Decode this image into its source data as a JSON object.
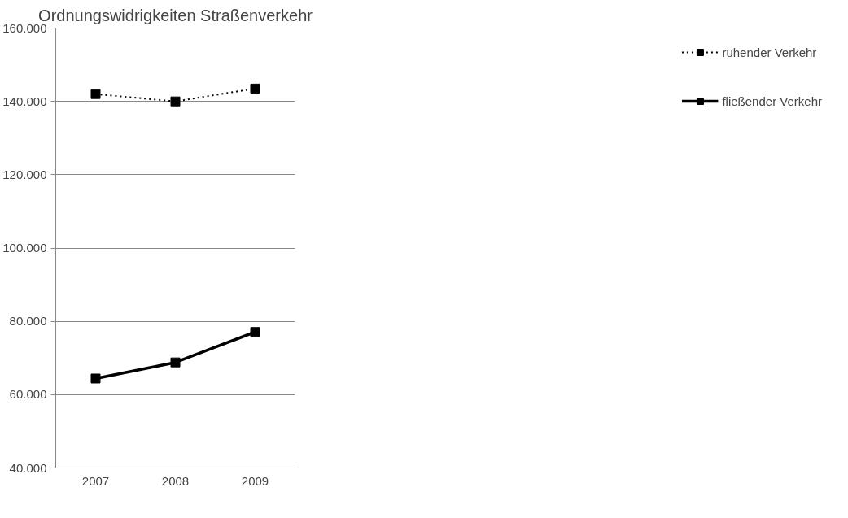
{
  "chart_data": {
    "type": "line",
    "title": "Ordnungswidrigkeiten Straßenverkehr",
    "categories": [
      "2007",
      "2008",
      "2009"
    ],
    "series": [
      {
        "name": "ruhender Verkehr",
        "color": "#000000",
        "values": [
          142000,
          140000,
          143500
        ],
        "line_style": "dotted"
      },
      {
        "name": "fließender Verkehr",
        "color": "#000000",
        "values": [
          64400,
          68800,
          77100
        ],
        "line_style": "solid"
      }
    ],
    "ylim": [
      40000,
      160000
    ],
    "yticks": [
      {
        "value": 40000,
        "label": "40.000"
      },
      {
        "value": 60000,
        "label": "60.000"
      },
      {
        "value": 80000,
        "label": "80.000"
      },
      {
        "value": 100000,
        "label": "100.000"
      },
      {
        "value": 120000,
        "label": "120.000"
      },
      {
        "value": 140000,
        "label": "140.000"
      },
      {
        "value": 160000,
        "label": "160.000"
      }
    ],
    "grid": "y",
    "legend": "right",
    "marker": "square"
  }
}
